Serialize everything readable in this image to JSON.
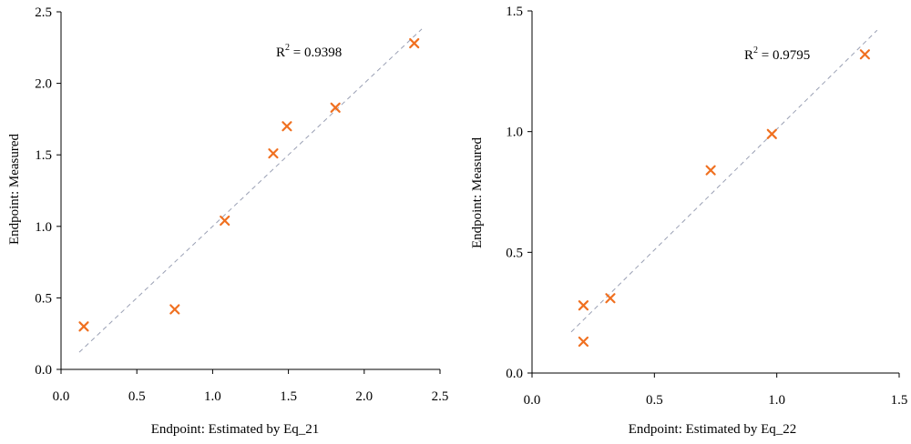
{
  "chart_data": [
    {
      "type": "scatter",
      "title": "",
      "xlabel": "Endpoint: Estimated by Eq_21",
      "ylabel": "Endpoint: Measured",
      "xlim": [
        0,
        2.5
      ],
      "ylim": [
        0,
        2.5
      ],
      "x_ticks": [
        "0.0",
        "0.5",
        "1.0",
        "1.5",
        "2.0",
        "2.5"
      ],
      "y_ticks": [
        "0.0",
        "0.5",
        "1.0",
        "1.5",
        "2.0",
        "2.5"
      ],
      "x": [
        0.15,
        0.75,
        1.08,
        1.4,
        1.49,
        1.81,
        2.33
      ],
      "y": [
        0.3,
        0.42,
        1.04,
        1.51,
        1.7,
        1.83,
        2.28
      ],
      "trendline": {
        "x": [
          0.12,
          2.38
        ],
        "y": [
          0.12,
          2.38
        ]
      },
      "r2_prefix": "R",
      "r2_sup": "2",
      "r2_value": " = 0.9398",
      "marker_color": "#f07020",
      "trend_color": "#9aa0b4"
    },
    {
      "type": "scatter",
      "title": "",
      "xlabel": "Endpoint: Estimated by Eq_22",
      "ylabel": "Endpoint: Measured",
      "xlim": [
        0,
        1.5
      ],
      "ylim": [
        0,
        1.5
      ],
      "x_ticks": [
        "0.0",
        "0.5",
        "1.0",
        "1.5"
      ],
      "y_ticks": [
        "0.0",
        "0.5",
        "1.0",
        "1.5"
      ],
      "x": [
        0.21,
        0.21,
        0.32,
        0.73,
        0.98,
        1.36
      ],
      "y": [
        0.13,
        0.28,
        0.31,
        0.84,
        0.99,
        1.32
      ],
      "trendline": {
        "x": [
          0.16,
          1.41
        ],
        "y": [
          0.17,
          1.42
        ]
      },
      "r2_prefix": "R",
      "r2_sup": "2",
      "r2_value": " = 0.9795",
      "marker_color": "#f07020",
      "trend_color": "#9aa0b4"
    }
  ]
}
